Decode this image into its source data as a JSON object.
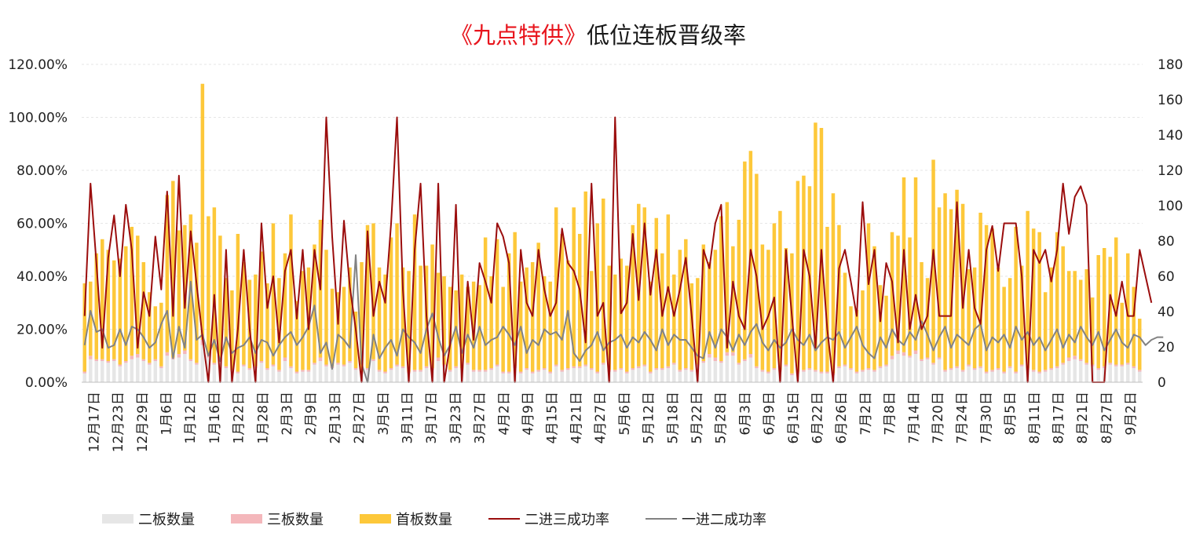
{
  "title": {
    "highlight": "《九点特供》",
    "rest": "低位连板晋级率"
  },
  "colors": {
    "second_board": "#e6e6e6",
    "third_board": "#f4b7bb",
    "first_board": "#fdc83a",
    "rate_2to3": "#9b0d0d",
    "rate_1to2": "#828282",
    "grid": "#e6e6e6",
    "title_highlight": "#e8141c"
  },
  "left_axis_ticks": [
    "0.00%",
    "20.00%",
    "40.00%",
    "60.00%",
    "80.00%",
    "100.00%",
    "120.00%"
  ],
  "right_axis_ticks": [
    "0",
    "20",
    "40",
    "60",
    "80",
    "100",
    "120",
    "140",
    "160",
    "180"
  ],
  "x_tick_labels": [
    "12月17日",
    "12月23日",
    "12月29日",
    "1月6日",
    "1月12日",
    "1月16日",
    "1月22日",
    "1月28日",
    "2月3日",
    "2月9日",
    "2月13日",
    "2月27日",
    "3月5日",
    "3月11日",
    "3月17日",
    "3月23日",
    "3月27日",
    "4月2日",
    "4月9日",
    "4月15日",
    "4月21日",
    "4月27日",
    "5月6日",
    "5月12日",
    "5月18日",
    "5月22日",
    "5月28日",
    "6月3日",
    "6月9日",
    "6月15日",
    "6月22日",
    "6月26日",
    "7月2日",
    "7月8日",
    "7月14日",
    "7月20日",
    "7月24日",
    "7月30日",
    "8月5日",
    "8月11日",
    "8月17日",
    "8月21日",
    "8月27日",
    "9月2日"
  ],
  "legend": [
    {
      "label": "二板数量",
      "kind": "bar",
      "color": "#e6e6e6"
    },
    {
      "label": "三板数量",
      "kind": "bar",
      "color": "#f4b7bb"
    },
    {
      "label": "首板数量",
      "kind": "bar",
      "color": "#fdc83a"
    },
    {
      "label": "二进三成功率",
      "kind": "line",
      "color": "#9b0d0d"
    },
    {
      "label": "一进二成功率",
      "kind": "line",
      "color": "#828282"
    }
  ],
  "chart_data": {
    "type": "bar",
    "title": "《九点特供》低位连板晋级率",
    "xlabel": "",
    "ylabel": "",
    "y_left_range": [
      0,
      1.2
    ],
    "y_right_range": [
      0,
      180
    ],
    "grid": true,
    "legend_position": "bottom",
    "category_count": 180,
    "series": [
      {
        "name": "二板数量",
        "type": "bar",
        "stack": "boards",
        "axis": "right",
        "values": [
          5,
          13,
          12,
          12,
          11,
          12,
          9,
          11,
          13,
          14,
          12,
          10,
          12,
          8,
          15,
          13,
          14,
          16,
          12,
          10,
          21,
          14,
          10,
          12,
          8,
          6,
          5,
          9,
          7,
          8,
          11,
          7,
          9,
          6,
          12,
          8,
          5,
          6,
          6,
          10,
          12,
          9,
          8,
          10,
          9,
          11,
          7,
          5,
          7,
          12,
          6,
          5,
          7,
          9,
          8,
          5,
          6,
          6,
          8,
          7,
          12,
          9,
          6,
          8,
          7,
          10,
          6,
          6,
          6,
          7,
          9,
          5,
          5,
          8,
          5,
          7,
          5,
          6,
          7,
          5,
          9,
          6,
          7,
          8,
          8,
          9,
          7,
          5,
          10,
          6,
          6,
          7,
          5,
          7,
          8,
          9,
          5,
          7,
          7,
          8,
          10,
          6,
          7,
          6,
          9,
          11,
          14,
          12,
          11,
          15,
          15,
          10,
          12,
          14,
          8,
          6,
          5,
          7,
          6,
          9,
          4,
          5,
          6,
          7,
          6,
          5,
          5,
          4,
          8,
          9,
          7,
          5,
          6,
          7,
          6,
          8,
          9,
          13,
          16,
          15,
          14,
          16,
          12,
          13,
          10,
          13,
          6,
          7,
          8,
          6,
          9,
          7,
          8,
          5,
          6,
          7,
          5,
          8,
          5,
          9,
          7,
          6,
          5,
          6,
          7,
          8,
          10,
          12,
          13,
          12,
          10,
          9,
          7,
          8,
          10,
          9,
          9,
          10,
          8,
          6
        ]
      },
      {
        "name": "三板数量",
        "type": "bar",
        "stack": "boards",
        "axis": "right",
        "values": [
          1,
          2,
          1,
          1,
          1,
          1,
          1,
          1,
          2,
          2,
          1,
          1,
          1,
          1,
          2,
          1,
          2,
          2,
          1,
          1,
          3,
          2,
          1,
          1,
          1,
          1,
          1,
          1,
          1,
          1,
          1,
          1,
          1,
          1,
          2,
          1,
          1,
          1,
          1,
          1,
          2,
          1,
          1,
          1,
          1,
          1,
          1,
          1,
          1,
          1,
          1,
          1,
          1,
          1,
          1,
          1,
          1,
          1,
          1,
          1,
          2,
          1,
          1,
          1,
          1,
          1,
          1,
          1,
          1,
          1,
          1,
          1,
          1,
          1,
          1,
          1,
          1,
          1,
          1,
          1,
          1,
          1,
          1,
          1,
          1,
          1,
          1,
          1,
          1,
          1,
          1,
          1,
          1,
          1,
          1,
          1,
          1,
          1,
          1,
          1,
          1,
          1,
          1,
          1,
          1,
          1,
          2,
          2,
          1,
          2,
          2,
          1,
          1,
          2,
          1,
          1,
          1,
          1,
          1,
          1,
          1,
          1,
          1,
          1,
          1,
          1,
          1,
          1,
          1,
          1,
          1,
          1,
          1,
          1,
          1,
          1,
          1,
          2,
          2,
          2,
          1,
          2,
          1,
          1,
          1,
          1,
          1,
          1,
          1,
          1,
          1,
          1,
          1,
          1,
          1,
          1,
          1,
          1,
          1,
          1,
          1,
          1,
          1,
          1,
          1,
          1,
          1,
          2,
          2,
          1,
          1,
          1,
          1,
          1,
          1,
          1,
          1,
          1,
          1,
          1
        ]
      },
      {
        "name": "首板数量",
        "type": "bar",
        "stack": "boards",
        "axis": "right",
        "values": [
          50,
          42,
          60,
          68,
          63,
          56,
          60,
          65,
          73,
          67,
          55,
          40,
          30,
          36,
          89,
          100,
          70,
          71,
          82,
          68,
          145,
          78,
          88,
          70,
          50,
          45,
          78,
          58,
          50,
          52,
          62,
          48,
          80,
          52,
          59,
          86,
          40,
          56,
          58,
          67,
          78,
          65,
          44,
          40,
          44,
          53,
          32,
          62,
          81,
          77,
          58,
          55,
          74,
          80,
          56,
          57,
          88,
          59,
          57,
          70,
          48,
          50,
          47,
          43,
          53,
          43,
          50,
          48,
          75,
          52,
          71,
          48,
          67,
          76,
          51,
          57,
          62,
          72,
          52,
          51,
          89,
          77,
          61,
          90,
          75,
          98,
          55,
          84,
          93,
          59,
          54,
          62,
          60,
          81,
          92,
          89,
          51,
          85,
          65,
          86,
          50,
          68,
          73,
          49,
          49,
          66,
          52,
          61,
          82,
          85,
          60,
          81,
          112,
          115,
          109,
          71,
          69,
          82,
          90,
          66,
          68,
          108,
          110,
          103,
          140,
          138,
          82,
          102,
          80,
          52,
          35,
          35,
          45,
          82,
          70,
          46,
          39,
          70,
          65,
          99,
          67,
          98,
          55,
          45,
          115,
          85,
          100,
          90,
          100,
          94,
          54,
          57,
          87,
          83,
          80,
          57,
          48,
          50,
          82,
          56,
          89,
          80,
          79,
          44,
          57,
          76,
          66,
          49,
          48,
          45,
          53,
          38,
          64,
          67,
          60,
          72,
          35,
          62,
          45,
          29
        ]
      },
      {
        "name": "二进三成功率",
        "type": "line",
        "axis": "left",
        "values": [
          0.25,
          0.75,
          0.45,
          0.13,
          0.47,
          0.63,
          0.4,
          0.67,
          0.5,
          0.13,
          0.34,
          0.25,
          0.55,
          0.35,
          0.72,
          0.25,
          0.78,
          0.28,
          0.57,
          0.37,
          0.17,
          0.0,
          0.33,
          0.0,
          0.5,
          0.0,
          0.2,
          0.5,
          0.2,
          0.0,
          0.6,
          0.28,
          0.4,
          0.15,
          0.42,
          0.5,
          0.24,
          0.5,
          0.2,
          0.5,
          0.35,
          1.0,
          0.55,
          0.22,
          0.61,
          0.36,
          0.2,
          0.0,
          0.57,
          0.25,
          0.38,
          0.3,
          0.6,
          1.0,
          0.35,
          0.0,
          0.5,
          0.75,
          0.25,
          0.0,
          0.75,
          0.0,
          0.14,
          0.67,
          0.0,
          0.38,
          0.16,
          0.45,
          0.38,
          0.3,
          0.6,
          0.55,
          0.45,
          0.0,
          0.5,
          0.3,
          0.25,
          0.5,
          0.35,
          0.25,
          0.3,
          0.58,
          0.45,
          0.42,
          0.35,
          0.15,
          0.75,
          0.25,
          0.3,
          0.0,
          1.0,
          0.26,
          0.3,
          0.56,
          0.31,
          0.6,
          0.33,
          0.5,
          0.25,
          0.36,
          0.25,
          0.35,
          0.47,
          0.25,
          0.0,
          0.5,
          0.43,
          0.6,
          0.67,
          0.13,
          0.38,
          0.25,
          0.2,
          0.5,
          0.4,
          0.2,
          0.25,
          0.32,
          0.0,
          0.5,
          0.25,
          0.0,
          0.5,
          0.4,
          0.13,
          0.5,
          0.2,
          0.0,
          0.43,
          0.5,
          0.38,
          0.25,
          0.68,
          0.37,
          0.5,
          0.23,
          0.45,
          0.38,
          0.15,
          0.5,
          0.2,
          0.33,
          0.2,
          0.25,
          0.5,
          0.25,
          0.25,
          0.25,
          0.68,
          0.28,
          0.5,
          0.28,
          0.22,
          0.5,
          0.59,
          0.42,
          0.6,
          0.6,
          0.6,
          0.4,
          0.0,
          0.5,
          0.45,
          0.5,
          0.38,
          0.5,
          0.75,
          0.56,
          0.7,
          0.74,
          0.67,
          0.0,
          0.0,
          0.0,
          0.33,
          0.25,
          0.38,
          0.25,
          0.25,
          0.5,
          0.4,
          0.3
        ]
      },
      {
        "name": "一进二成功率",
        "type": "line",
        "axis": "left",
        "values": [
          0.14,
          0.27,
          0.19,
          0.2,
          0.13,
          0.14,
          0.2,
          0.14,
          0.21,
          0.2,
          0.17,
          0.13,
          0.15,
          0.22,
          0.27,
          0.09,
          0.21,
          0.13,
          0.38,
          0.16,
          0.18,
          0.1,
          0.16,
          0.08,
          0.17,
          0.11,
          0.13,
          0.14,
          0.17,
          0.11,
          0.16,
          0.15,
          0.1,
          0.14,
          0.17,
          0.19,
          0.14,
          0.17,
          0.21,
          0.29,
          0.11,
          0.15,
          0.05,
          0.18,
          0.16,
          0.13,
          0.48,
          0.07,
          0.0,
          0.18,
          0.09,
          0.13,
          0.16,
          0.1,
          0.2,
          0.17,
          0.15,
          0.11,
          0.2,
          0.26,
          0.17,
          0.1,
          0.14,
          0.21,
          0.11,
          0.18,
          0.13,
          0.21,
          0.14,
          0.16,
          0.17,
          0.21,
          0.18,
          0.14,
          0.21,
          0.11,
          0.16,
          0.14,
          0.2,
          0.18,
          0.19,
          0.16,
          0.27,
          0.11,
          0.08,
          0.12,
          0.14,
          0.19,
          0.12,
          0.15,
          0.16,
          0.18,
          0.13,
          0.17,
          0.15,
          0.19,
          0.16,
          0.12,
          0.2,
          0.14,
          0.18,
          0.16,
          0.16,
          0.13,
          0.1,
          0.09,
          0.19,
          0.13,
          0.2,
          0.17,
          0.12,
          0.18,
          0.14,
          0.19,
          0.22,
          0.15,
          0.12,
          0.16,
          0.13,
          0.15,
          0.2,
          0.16,
          0.14,
          0.18,
          0.12,
          0.15,
          0.17,
          0.16,
          0.19,
          0.13,
          0.17,
          0.21,
          0.14,
          0.11,
          0.09,
          0.17,
          0.13,
          0.2,
          0.16,
          0.14,
          0.19,
          0.16,
          0.23,
          0.18,
          0.12,
          0.17,
          0.21,
          0.13,
          0.18,
          0.16,
          0.14,
          0.2,
          0.22,
          0.12,
          0.17,
          0.15,
          0.18,
          0.13,
          0.21,
          0.16,
          0.19,
          0.14,
          0.17,
          0.12,
          0.16,
          0.2,
          0.13,
          0.18,
          0.15,
          0.21,
          0.17,
          0.14,
          0.19,
          0.12,
          0.16,
          0.2,
          0.15,
          0.13,
          0.18,
          0.17,
          0.14,
          0.16,
          0.17,
          0.17
        ]
      }
    ]
  }
}
